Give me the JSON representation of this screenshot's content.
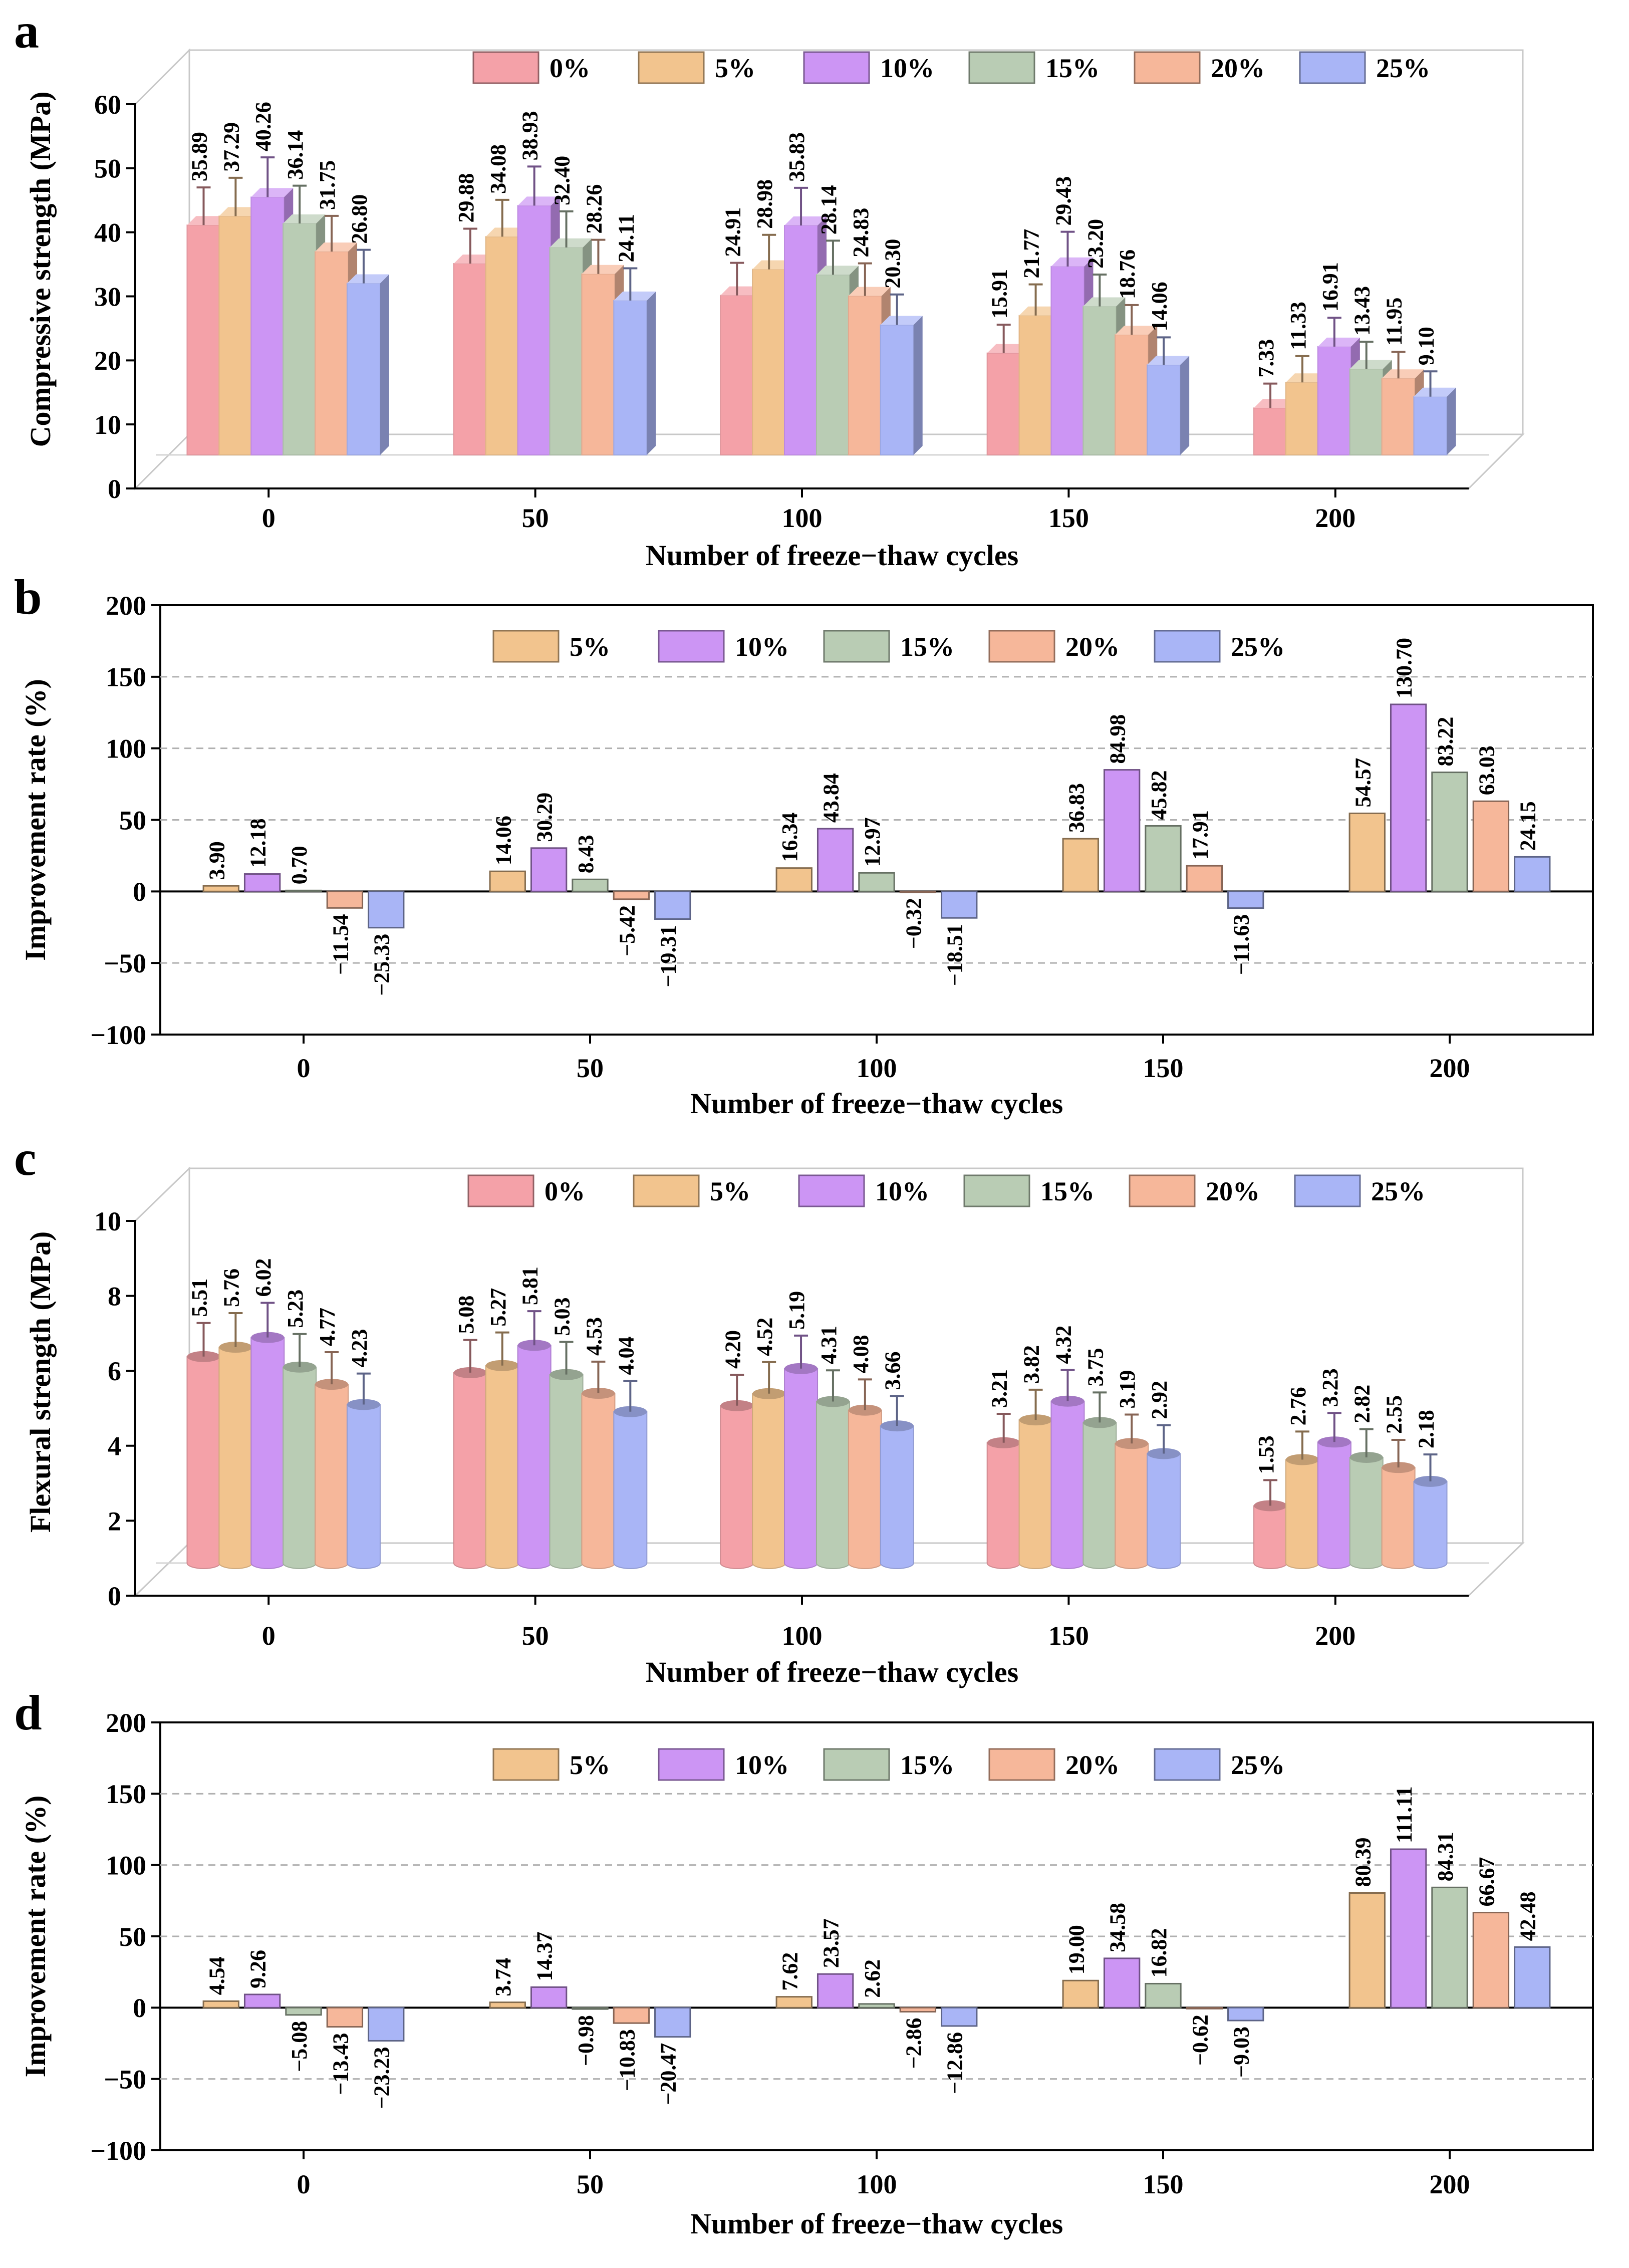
{
  "colors": {
    "0%": "#f4a1a8",
    "5%": "#f2c48e",
    "10%": "#cc95f4",
    "15%": "#b9ccb4",
    "20%": "#f6b79a",
    "25%": "#a9b5f6"
  },
  "chart_data": [
    {
      "id": "a",
      "panel_label": "a",
      "type": "bar",
      "style": "3d-column",
      "title": "",
      "xlabel": "Number of freeze−thaw cycles",
      "ylabel": "Compressive strength (MPa)",
      "categories": [
        "0",
        "50",
        "100",
        "150",
        "200"
      ],
      "ylim": [
        0,
        60
      ],
      "yticks": [
        "0",
        "10",
        "20",
        "30",
        "40",
        "50",
        "60"
      ],
      "legend_position": "top-center",
      "series": [
        {
          "name": "0%",
          "values": [
            35.89,
            29.88,
            24.91,
            15.91,
            7.33
          ],
          "labels": [
            "35.89",
            "29.88",
            "24.91",
            "15.91",
            "7.33"
          ]
        },
        {
          "name": "5%",
          "values": [
            37.29,
            34.08,
            28.98,
            21.77,
            11.33
          ],
          "labels": [
            "37.29",
            "34.08",
            "28.98",
            "21.77",
            "11.33"
          ]
        },
        {
          "name": "10%",
          "values": [
            40.26,
            38.93,
            35.83,
            29.43,
            16.91
          ],
          "labels": [
            "40.26",
            "38.93",
            "35.83",
            "29.43",
            "16.91"
          ]
        },
        {
          "name": "15%",
          "values": [
            36.14,
            32.4,
            28.14,
            23.2,
            13.43
          ],
          "labels": [
            "36.14",
            "32.40",
            "28.14",
            "23.20",
            "13.43"
          ]
        },
        {
          "name": "20%",
          "values": [
            31.75,
            28.26,
            24.83,
            18.76,
            11.95
          ],
          "labels": [
            "31.75",
            "28.26",
            "24.83",
            "18.76",
            "11.95"
          ]
        },
        {
          "name": "25%",
          "values": [
            26.8,
            24.11,
            20.3,
            14.06,
            9.1
          ],
          "labels": [
            "26.80",
            "24.11",
            "20.30",
            "14.06",
            "9.10"
          ]
        }
      ]
    },
    {
      "id": "b",
      "panel_label": "b",
      "type": "bar",
      "title": "",
      "xlabel": "Number of freeze−thaw cycles",
      "ylabel": "Improvement rate (%)",
      "categories": [
        "0",
        "50",
        "100",
        "150",
        "200"
      ],
      "ylim": [
        -100,
        200
      ],
      "yticks": [
        "−100",
        "−50",
        "0",
        "50",
        "100",
        "150",
        "200"
      ],
      "legend_position": "top-center",
      "series": [
        {
          "name": "5%",
          "values": [
            3.9,
            14.06,
            16.34,
            36.83,
            54.57
          ],
          "labels": [
            "3.90",
            "14.06",
            "16.34",
            "36.83",
            "54.57"
          ]
        },
        {
          "name": "10%",
          "values": [
            12.18,
            30.29,
            43.84,
            84.98,
            130.7
          ],
          "labels": [
            "12.18",
            "30.29",
            "43.84",
            "84.98",
            "130.70"
          ]
        },
        {
          "name": "15%",
          "values": [
            0.7,
            8.43,
            12.97,
            45.82,
            83.22
          ],
          "labels": [
            "0.70",
            "8.43",
            "12.97",
            "45.82",
            "83.22"
          ]
        },
        {
          "name": "20%",
          "values": [
            -11.54,
            -5.42,
            -0.32,
            17.91,
            63.03
          ],
          "labels": [
            "−11.54",
            "−5.42",
            "−0.32",
            "17.91",
            "63.03"
          ]
        },
        {
          "name": "25%",
          "values": [
            -25.33,
            -19.31,
            -18.51,
            -11.63,
            24.15
          ],
          "labels": [
            "−25.33",
            "−19.31",
            "−18.51",
            "−11.63",
            "24.15"
          ]
        }
      ]
    },
    {
      "id": "c",
      "panel_label": "c",
      "type": "bar",
      "style": "3d-cylinder",
      "title": "",
      "xlabel": "Number of freeze−thaw cycles",
      "ylabel": "Flexural strength (MPa)",
      "categories": [
        "0",
        "50",
        "100",
        "150",
        "200"
      ],
      "ylim": [
        0,
        10
      ],
      "yticks": [
        "0",
        "2",
        "4",
        "6",
        "8",
        "10"
      ],
      "legend_position": "top-center",
      "series": [
        {
          "name": "0%",
          "values": [
            5.51,
            5.08,
            4.2,
            3.21,
            1.53
          ],
          "labels": [
            "5.51",
            "5.08",
            "4.20",
            "3.21",
            "1.53"
          ]
        },
        {
          "name": "5%",
          "values": [
            5.76,
            5.27,
            4.52,
            3.82,
            2.76
          ],
          "labels": [
            "5.76",
            "5.27",
            "4.52",
            "3.82",
            "2.76"
          ]
        },
        {
          "name": "10%",
          "values": [
            6.02,
            5.81,
            5.19,
            4.32,
            3.23
          ],
          "labels": [
            "6.02",
            "5.81",
            "5.19",
            "4.32",
            "3.23"
          ]
        },
        {
          "name": "15%",
          "values": [
            5.23,
            5.03,
            4.31,
            3.75,
            2.82
          ],
          "labels": [
            "5.23",
            "5.03",
            "4.31",
            "3.75",
            "2.82"
          ]
        },
        {
          "name": "20%",
          "values": [
            4.77,
            4.53,
            4.08,
            3.19,
            2.55
          ],
          "labels": [
            "4.77",
            "4.53",
            "4.08",
            "3.19",
            "2.55"
          ]
        },
        {
          "name": "25%",
          "values": [
            4.23,
            4.04,
            3.66,
            2.92,
            2.18
          ],
          "labels": [
            "4.23",
            "4.04",
            "3.66",
            "2.92",
            "2.18"
          ]
        }
      ]
    },
    {
      "id": "d",
      "panel_label": "d",
      "type": "bar",
      "title": "",
      "xlabel": "Number of freeze−thaw cycles",
      "ylabel": "Improvement rate (%)",
      "categories": [
        "0",
        "50",
        "100",
        "150",
        "200"
      ],
      "ylim": [
        -100,
        200
      ],
      "yticks": [
        "−100",
        "−50",
        "0",
        "50",
        "100",
        "150",
        "200"
      ],
      "legend_position": "top-center",
      "series": [
        {
          "name": "5%",
          "values": [
            4.54,
            3.74,
            7.62,
            19.0,
            80.39
          ],
          "labels": [
            "4.54",
            "3.74",
            "7.62",
            "19.00",
            "80.39"
          ]
        },
        {
          "name": "10%",
          "values": [
            9.26,
            14.37,
            23.57,
            34.58,
            111.11
          ],
          "labels": [
            "9.26",
            "14.37",
            "23.57",
            "34.58",
            "111.11"
          ]
        },
        {
          "name": "15%",
          "values": [
            -5.08,
            -0.98,
            2.62,
            16.82,
            84.31
          ],
          "labels": [
            "−5.08",
            "−0.98",
            "2.62",
            "16.82",
            "84.31"
          ]
        },
        {
          "name": "20%",
          "values": [
            -13.43,
            -10.83,
            -2.86,
            -0.62,
            66.67
          ],
          "labels": [
            "−13.43",
            "−10.83",
            "−2.86",
            "−0.62",
            "66.67"
          ]
        },
        {
          "name": "25%",
          "values": [
            -23.23,
            -20.47,
            -12.86,
            -9.03,
            42.48
          ],
          "labels": [
            "−23.23",
            "−20.47",
            "−12.86",
            "−9.03",
            "42.48"
          ]
        }
      ]
    }
  ]
}
